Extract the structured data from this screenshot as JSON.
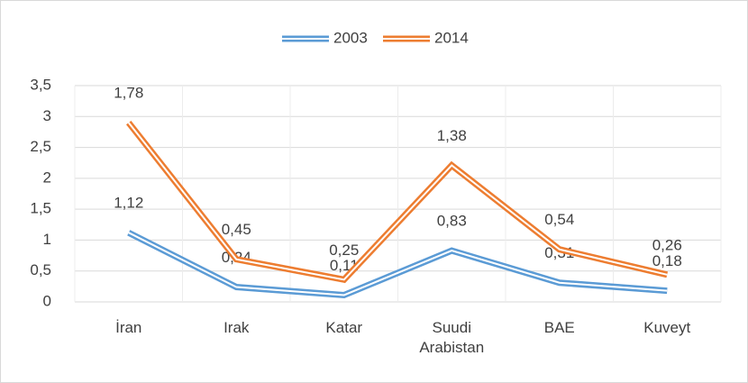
{
  "chart_data": {
    "type": "line",
    "stacked": true,
    "categories": [
      "İran",
      "Irak",
      "Katar",
      "Suudi Arabistan",
      "BAE",
      "Kuveyt"
    ],
    "series": [
      {
        "name": "2003",
        "color": "#5b9bd5",
        "values": [
          1.12,
          0.24,
          0.11,
          0.83,
          0.31,
          0.18
        ],
        "value_labels": [
          "1,12",
          "0,24",
          "0,11",
          "0,83",
          "0,31",
          "0,18"
        ]
      },
      {
        "name": "2014",
        "color": "#ed7d31",
        "values": [
          1.78,
          0.45,
          0.25,
          1.38,
          0.54,
          0.26
        ],
        "value_labels": [
          "1,78",
          "0,45",
          "0,25",
          "1,38",
          "0,54",
          "0,26"
        ]
      }
    ],
    "ylim": [
      0,
      3.5
    ],
    "yticks": [
      0,
      {
        "value": 0.5,
        "label": "0,5"
      },
      1,
      {
        "value": 1.5,
        "label": "1,5"
      },
      2,
      {
        "value": 2.5,
        "label": "2,5"
      },
      3,
      {
        "value": 3.5,
        "label": "3,5"
      }
    ],
    "grid": true,
    "legend": "top"
  }
}
